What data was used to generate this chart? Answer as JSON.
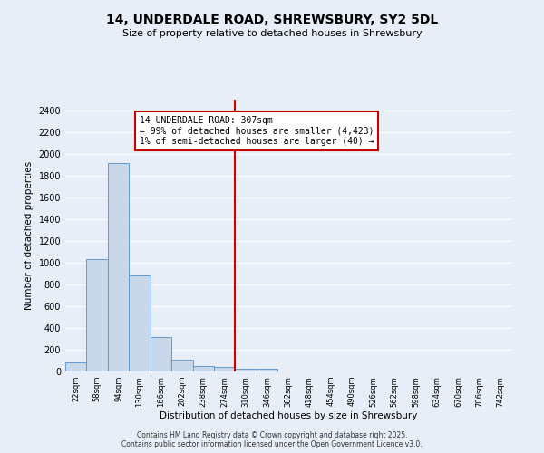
{
  "title_line1": "14, UNDERDALE ROAD, SHREWSBURY, SY2 5DL",
  "title_line2": "Size of property relative to detached houses in Shrewsbury",
  "xlabel": "Distribution of detached houses by size in Shrewsbury",
  "ylabel": "Number of detached properties",
  "bar_edges": [
    22,
    58,
    94,
    130,
    166,
    202,
    238,
    274,
    310,
    346,
    382,
    418,
    454,
    490,
    526,
    562,
    598,
    634,
    670,
    706,
    742
  ],
  "bar_heights": [
    85,
    1030,
    1920,
    880,
    320,
    110,
    50,
    45,
    25,
    25,
    0,
    0,
    0,
    0,
    0,
    0,
    0,
    0,
    0,
    0
  ],
  "bar_color": "#c8d8ea",
  "bar_edgecolor": "#6699cc",
  "vline_x": 310,
  "vline_color": "#cc0000",
  "annotation_text": "14 UNDERDALE ROAD: 307sqm\n← 99% of detached houses are smaller (4,423)\n1% of semi-detached houses are larger (40) →",
  "ylim": [
    0,
    2500
  ],
  "yticks": [
    0,
    200,
    400,
    600,
    800,
    1000,
    1200,
    1400,
    1600,
    1800,
    2000,
    2200,
    2400
  ],
  "tick_labels": [
    "22sqm",
    "58sqm",
    "94sqm",
    "130sqm",
    "166sqm",
    "202sqm",
    "238sqm",
    "274sqm",
    "310sqm",
    "346sqm",
    "382sqm",
    "418sqm",
    "454sqm",
    "490sqm",
    "526sqm",
    "562sqm",
    "598sqm",
    "634sqm",
    "670sqm",
    "706sqm",
    "742sqm"
  ],
  "bg_color": "#e8eef8",
  "grid_color": "#ffffff",
  "footer1": "Contains HM Land Registry data © Crown copyright and database right 2025.",
  "footer2": "Contains public sector information licensed under the Open Government Licence v3.0."
}
